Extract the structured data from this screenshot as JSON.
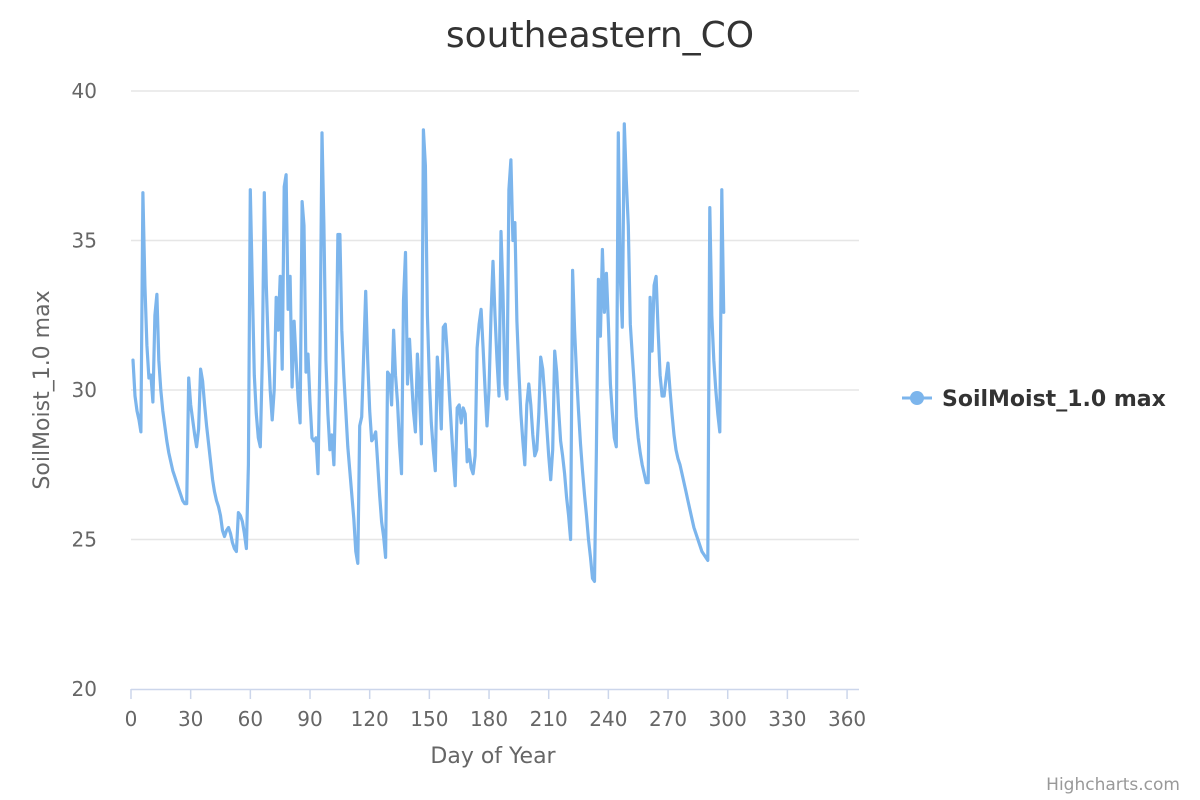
{
  "chart_data": {
    "type": "line",
    "title": "southeastern_CO",
    "xlabel": "Day of Year",
    "ylabel": "SoilMoist_1.0 max",
    "xlim": [
      0,
      366
    ],
    "ylim": [
      20,
      40
    ],
    "xticks": [
      0,
      30,
      60,
      90,
      120,
      150,
      180,
      210,
      240,
      270,
      300,
      330,
      360
    ],
    "yticks": [
      20,
      25,
      30,
      35,
      40
    ],
    "grid": true,
    "legend_position": "right",
    "series": [
      {
        "name": "SoilMoist_1.0 max",
        "color": "#7cb5ec",
        "points": [
          [
            1,
            31.0
          ],
          [
            2,
            29.8
          ],
          [
            3,
            29.3
          ],
          [
            4,
            29.0
          ],
          [
            5,
            28.6
          ],
          [
            6,
            36.6
          ],
          [
            7,
            33.5
          ],
          [
            8,
            31.5
          ],
          [
            9,
            30.4
          ],
          [
            10,
            30.5
          ],
          [
            11,
            29.6
          ],
          [
            12,
            32.5
          ],
          [
            13,
            33.2
          ],
          [
            14,
            31.0
          ],
          [
            15,
            30.0
          ],
          [
            16,
            29.3
          ],
          [
            17,
            28.8
          ],
          [
            18,
            28.3
          ],
          [
            19,
            27.9
          ],
          [
            20,
            27.6
          ],
          [
            21,
            27.3
          ],
          [
            22,
            27.1
          ],
          [
            23,
            26.9
          ],
          [
            24,
            26.7
          ],
          [
            25,
            26.5
          ],
          [
            26,
            26.3
          ],
          [
            27,
            26.2
          ],
          [
            28,
            26.2
          ],
          [
            29,
            30.4
          ],
          [
            30,
            29.5
          ],
          [
            31,
            29.0
          ],
          [
            32,
            28.5
          ],
          [
            33,
            28.1
          ],
          [
            34,
            28.7
          ],
          [
            35,
            30.7
          ],
          [
            36,
            30.3
          ],
          [
            37,
            29.5
          ],
          [
            38,
            28.8
          ],
          [
            39,
            28.2
          ],
          [
            40,
            27.6
          ],
          [
            41,
            27.0
          ],
          [
            42,
            26.6
          ],
          [
            43,
            26.3
          ],
          [
            44,
            26.1
          ],
          [
            45,
            25.8
          ],
          [
            46,
            25.3
          ],
          [
            47,
            25.1
          ],
          [
            48,
            25.3
          ],
          [
            49,
            25.4
          ],
          [
            50,
            25.2
          ],
          [
            51,
            24.9
          ],
          [
            52,
            24.7
          ],
          [
            53,
            24.6
          ],
          [
            54,
            25.9
          ],
          [
            55,
            25.8
          ],
          [
            56,
            25.6
          ],
          [
            57,
            25.2
          ],
          [
            58,
            24.7
          ],
          [
            59,
            27.5
          ],
          [
            60,
            36.7
          ],
          [
            61,
            33.5
          ],
          [
            62,
            30.5
          ],
          [
            63,
            29.2
          ],
          [
            64,
            28.4
          ],
          [
            65,
            28.1
          ],
          [
            66,
            31.0
          ],
          [
            67,
            36.6
          ],
          [
            68,
            33.5
          ],
          [
            69,
            31.5
          ],
          [
            70,
            30.0
          ],
          [
            71,
            29.0
          ],
          [
            72,
            30.0
          ],
          [
            73,
            33.1
          ],
          [
            74,
            32.0
          ],
          [
            75,
            33.8
          ],
          [
            76,
            30.7
          ],
          [
            77,
            36.8
          ],
          [
            78,
            37.2
          ],
          [
            79,
            32.7
          ],
          [
            80,
            33.8
          ],
          [
            81,
            30.1
          ],
          [
            82,
            32.3
          ],
          [
            83,
            31.0
          ],
          [
            84,
            29.7
          ],
          [
            85,
            28.9
          ],
          [
            86,
            36.3
          ],
          [
            87,
            35.5
          ],
          [
            88,
            30.6
          ],
          [
            89,
            31.2
          ],
          [
            90,
            29.6
          ],
          [
            91,
            28.4
          ],
          [
            92,
            28.3
          ],
          [
            93,
            28.4
          ],
          [
            94,
            27.2
          ],
          [
            95,
            31.2
          ],
          [
            96,
            38.6
          ],
          [
            97,
            35.5
          ],
          [
            98,
            31.0
          ],
          [
            99,
            29.2
          ],
          [
            100,
            28.0
          ],
          [
            101,
            28.5
          ],
          [
            102,
            27.5
          ],
          [
            103,
            30.3
          ],
          [
            104,
            35.2
          ],
          [
            105,
            35.2
          ],
          [
            106,
            32.0
          ],
          [
            107,
            30.5
          ],
          [
            108,
            29.3
          ],
          [
            109,
            28.1
          ],
          [
            110,
            27.3
          ],
          [
            111,
            26.5
          ],
          [
            112,
            25.7
          ],
          [
            113,
            24.6
          ],
          [
            114,
            24.2
          ],
          [
            115,
            28.8
          ],
          [
            116,
            29.1
          ],
          [
            117,
            31.2
          ],
          [
            118,
            33.3
          ],
          [
            119,
            31.0
          ],
          [
            120,
            29.3
          ],
          [
            121,
            28.3
          ],
          [
            122,
            28.4
          ],
          [
            123,
            28.6
          ],
          [
            124,
            27.6
          ],
          [
            125,
            26.5
          ],
          [
            126,
            25.6
          ],
          [
            127,
            25.1
          ],
          [
            128,
            24.4
          ],
          [
            129,
            30.6
          ],
          [
            130,
            30.5
          ],
          [
            131,
            29.5
          ],
          [
            132,
            32.0
          ],
          [
            133,
            30.5
          ],
          [
            134,
            29.6
          ],
          [
            135,
            28.2
          ],
          [
            136,
            27.2
          ],
          [
            137,
            33.0
          ],
          [
            138,
            34.6
          ],
          [
            139,
            30.2
          ],
          [
            140,
            31.7
          ],
          [
            141,
            30.4
          ],
          [
            142,
            29.3
          ],
          [
            143,
            28.6
          ],
          [
            144,
            31.2
          ],
          [
            145,
            29.9
          ],
          [
            146,
            28.2
          ],
          [
            147,
            38.7
          ],
          [
            148,
            37.5
          ],
          [
            149,
            32.5
          ],
          [
            150,
            30.3
          ],
          [
            151,
            28.9
          ],
          [
            152,
            28.0
          ],
          [
            153,
            27.3
          ],
          [
            154,
            31.1
          ],
          [
            155,
            30.2
          ],
          [
            156,
            28.7
          ],
          [
            157,
            32.1
          ],
          [
            158,
            32.2
          ],
          [
            159,
            31.2
          ],
          [
            160,
            29.9
          ],
          [
            161,
            28.8
          ],
          [
            162,
            27.7
          ],
          [
            163,
            26.8
          ],
          [
            164,
            29.4
          ],
          [
            165,
            29.5
          ],
          [
            166,
            28.9
          ],
          [
            167,
            29.4
          ],
          [
            168,
            29.2
          ],
          [
            169,
            27.6
          ],
          [
            170,
            28.0
          ],
          [
            171,
            27.4
          ],
          [
            172,
            27.2
          ],
          [
            173,
            27.8
          ],
          [
            174,
            31.4
          ],
          [
            175,
            32.2
          ],
          [
            176,
            32.7
          ],
          [
            177,
            31.4
          ],
          [
            178,
            30.0
          ],
          [
            179,
            28.8
          ],
          [
            180,
            30.0
          ],
          [
            181,
            32.5
          ],
          [
            182,
            34.3
          ],
          [
            183,
            32.5
          ],
          [
            184,
            31.0
          ],
          [
            185,
            29.8
          ],
          [
            186,
            35.3
          ],
          [
            187,
            33.2
          ],
          [
            188,
            30.2
          ],
          [
            189,
            29.7
          ],
          [
            190,
            36.7
          ],
          [
            191,
            37.7
          ],
          [
            192,
            35.0
          ],
          [
            193,
            35.6
          ],
          [
            194,
            32.3
          ],
          [
            195,
            30.6
          ],
          [
            196,
            29.2
          ],
          [
            197,
            28.3
          ],
          [
            198,
            27.5
          ],
          [
            199,
            29.5
          ],
          [
            200,
            30.2
          ],
          [
            201,
            29.5
          ],
          [
            202,
            28.5
          ],
          [
            203,
            27.8
          ],
          [
            204,
            28.0
          ],
          [
            205,
            29.2
          ],
          [
            206,
            31.1
          ],
          [
            207,
            30.7
          ],
          [
            208,
            29.8
          ],
          [
            209,
            28.8
          ],
          [
            210,
            27.8
          ],
          [
            211,
            27.0
          ],
          [
            212,
            28.0
          ],
          [
            213,
            31.3
          ],
          [
            214,
            30.6
          ],
          [
            215,
            29.3
          ],
          [
            216,
            28.3
          ],
          [
            217,
            27.8
          ],
          [
            218,
            27.2
          ],
          [
            219,
            26.4
          ],
          [
            220,
            25.8
          ],
          [
            221,
            25.0
          ],
          [
            222,
            34.0
          ],
          [
            223,
            32.0
          ],
          [
            224,
            30.5
          ],
          [
            225,
            29.3
          ],
          [
            226,
            28.2
          ],
          [
            227,
            27.3
          ],
          [
            228,
            26.5
          ],
          [
            229,
            25.8
          ],
          [
            230,
            25.0
          ],
          [
            231,
            24.4
          ],
          [
            232,
            23.7
          ],
          [
            233,
            23.6
          ],
          [
            234,
            28.0
          ],
          [
            235,
            33.7
          ],
          [
            236,
            31.8
          ],
          [
            237,
            34.7
          ],
          [
            238,
            32.6
          ],
          [
            239,
            33.9
          ],
          [
            240,
            32.2
          ],
          [
            241,
            30.2
          ],
          [
            242,
            29.2
          ],
          [
            243,
            28.4
          ],
          [
            244,
            28.1
          ],
          [
            245,
            38.6
          ],
          [
            246,
            33.8
          ],
          [
            247,
            32.1
          ],
          [
            248,
            38.9
          ],
          [
            249,
            37.0
          ],
          [
            250,
            35.5
          ],
          [
            251,
            32.2
          ],
          [
            252,
            31.2
          ],
          [
            253,
            30.2
          ],
          [
            254,
            29.1
          ],
          [
            255,
            28.4
          ],
          [
            256,
            27.9
          ],
          [
            257,
            27.5
          ],
          [
            258,
            27.2
          ],
          [
            259,
            26.9
          ],
          [
            260,
            26.9
          ],
          [
            261,
            33.1
          ],
          [
            262,
            31.3
          ],
          [
            263,
            33.5
          ],
          [
            264,
            33.8
          ],
          [
            265,
            32.0
          ],
          [
            266,
            30.5
          ],
          [
            267,
            29.8
          ],
          [
            268,
            29.8
          ],
          [
            269,
            30.4
          ],
          [
            270,
            30.9
          ],
          [
            271,
            30.0
          ],
          [
            272,
            29.2
          ],
          [
            273,
            28.5
          ],
          [
            274,
            28.0
          ],
          [
            275,
            27.7
          ],
          [
            276,
            27.5
          ],
          [
            277,
            27.2
          ],
          [
            278,
            26.9
          ],
          [
            279,
            26.6
          ],
          [
            280,
            26.3
          ],
          [
            281,
            26.0
          ],
          [
            282,
            25.7
          ],
          [
            283,
            25.4
          ],
          [
            284,
            25.2
          ],
          [
            285,
            25.0
          ],
          [
            286,
            24.8
          ],
          [
            287,
            24.6
          ],
          [
            288,
            24.5
          ],
          [
            289,
            24.4
          ],
          [
            290,
            24.3
          ],
          [
            291,
            36.1
          ],
          [
            292,
            32.5
          ],
          [
            293,
            31.0
          ],
          [
            294,
            30.0
          ],
          [
            295,
            29.2
          ],
          [
            296,
            28.6
          ],
          [
            297,
            36.7
          ],
          [
            298,
            32.6
          ]
        ]
      }
    ]
  },
  "credits": "Highcharts.com"
}
